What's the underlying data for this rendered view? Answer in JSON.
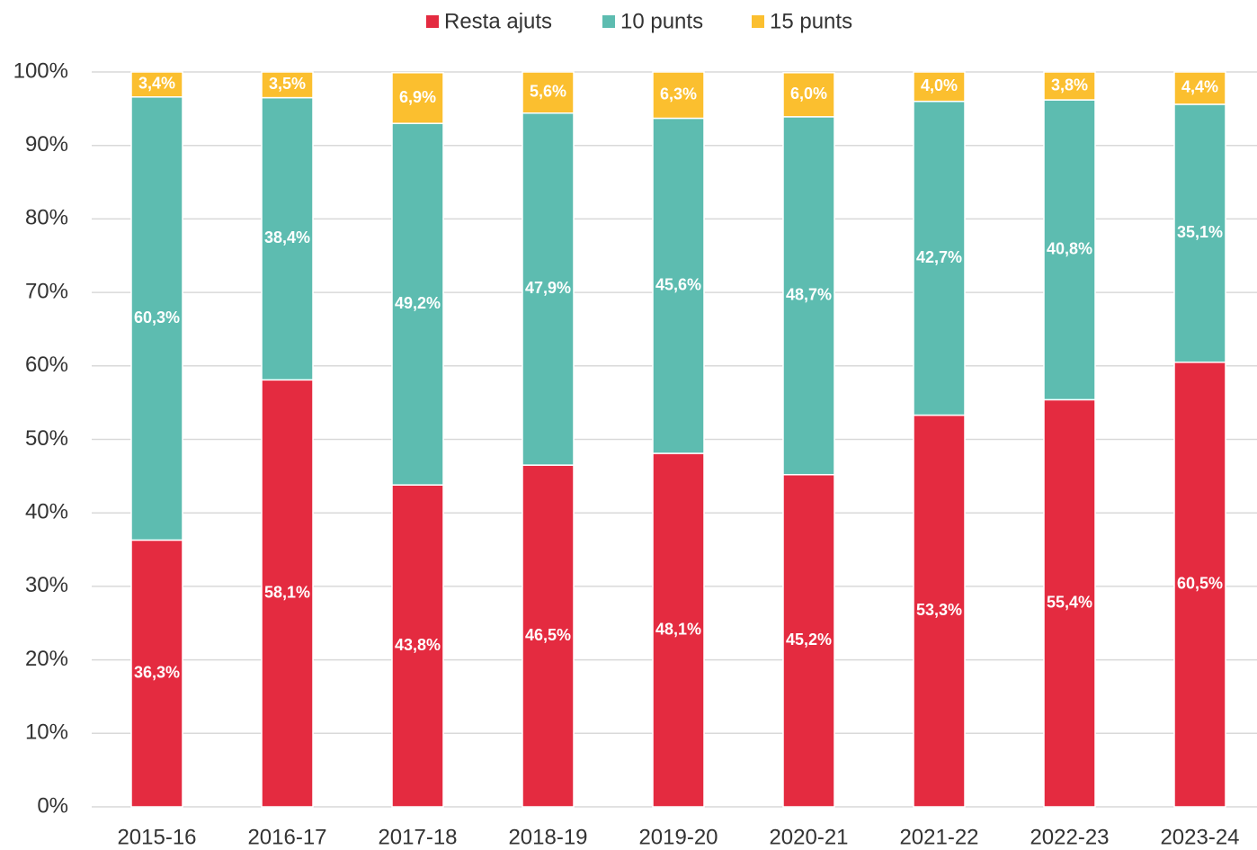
{
  "chart_data": {
    "type": "stacked_bar",
    "categories": [
      "2015-16",
      "2016-17",
      "2017-18",
      "2018-19",
      "2019-20",
      "2020-21",
      "2021-22",
      "2022-23",
      "2023-24"
    ],
    "series": [
      {
        "name": "Resta ajuts",
        "color": "#e42b40",
        "values": [
          36.3,
          58.1,
          43.8,
          46.5,
          48.1,
          45.2,
          53.3,
          55.4,
          60.5
        ],
        "value_labels": [
          "36,3%",
          "58,1%",
          "43,8%",
          "46,5%",
          "48,1%",
          "45,2%",
          "53,3%",
          "55,4%",
          "60,5%"
        ]
      },
      {
        "name": "10 punts",
        "color": "#5dbcb0",
        "values": [
          60.3,
          38.4,
          49.2,
          47.9,
          45.6,
          48.7,
          42.7,
          40.8,
          35.1
        ],
        "value_labels": [
          "60,3%",
          "38,4%",
          "49,2%",
          "47,9%",
          "45,6%",
          "48,7%",
          "42,7%",
          "40,8%",
          "35,1%"
        ]
      },
      {
        "name": "15 punts",
        "color": "#fbbf2f",
        "values": [
          3.4,
          3.5,
          6.9,
          5.6,
          6.3,
          6.0,
          4.0,
          3.8,
          4.4
        ],
        "value_labels": [
          "3,4%",
          "3,5%",
          "6,9%",
          "5,6%",
          "6,3%",
          "6,0%",
          "4,0%",
          "3,8%",
          "4,4%"
        ]
      }
    ],
    "ylim": [
      0,
      100
    ],
    "yticks": [
      {
        "value": 0,
        "label": "0%"
      },
      {
        "value": 10,
        "label": "10%"
      },
      {
        "value": 20,
        "label": "20%"
      },
      {
        "value": 30,
        "label": "30%"
      },
      {
        "value": 40,
        "label": "40%"
      },
      {
        "value": 50,
        "label": "50%"
      },
      {
        "value": 60,
        "label": "60%"
      },
      {
        "value": 70,
        "label": "70%"
      },
      {
        "value": 80,
        "label": "80%"
      },
      {
        "value": 90,
        "label": "90%"
      },
      {
        "value": 100,
        "label": "100%"
      }
    ],
    "grid": true,
    "legend": "top"
  }
}
